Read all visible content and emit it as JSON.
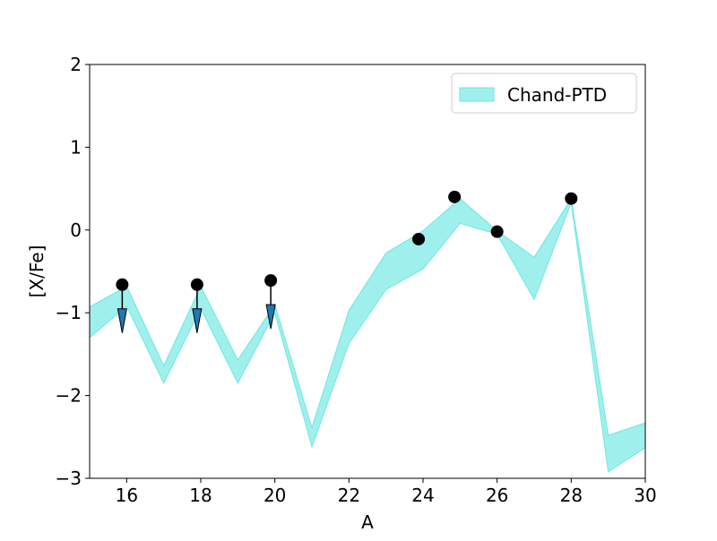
{
  "chart_data": {
    "type": "band_scatter",
    "xlabel": "A",
    "ylabel": "[X/Fe]",
    "xlim": [
      15,
      30
    ],
    "ylim": [
      -3,
      2
    ],
    "xticks": [
      16,
      18,
      20,
      22,
      24,
      26,
      28,
      30
    ],
    "yticks": [
      {
        "value": -3,
        "label": "−3"
      },
      {
        "value": -2,
        "label": "−2"
      },
      {
        "value": -1,
        "label": "−1"
      },
      0,
      1,
      2
    ],
    "legend": "upper right",
    "series": [
      {
        "type": "band",
        "name": "Chand-PTD",
        "color": "#9ff0ec",
        "edge_color": "#6ee6e0",
        "x": [
          15,
          16,
          17,
          18,
          19,
          20,
          21,
          22,
          23,
          24,
          25,
          26,
          27,
          28,
          29,
          30
        ],
        "upper": [
          -0.93,
          -0.68,
          -1.64,
          -0.68,
          -1.57,
          -0.9,
          -2.39,
          -0.97,
          -0.28,
          -0.01,
          0.38,
          -0.01,
          -0.33,
          0.38,
          -2.48,
          -2.33
        ],
        "lower": [
          -1.3,
          -0.92,
          -1.85,
          -0.95,
          -1.85,
          -1.0,
          -2.62,
          -1.37,
          -0.72,
          -0.47,
          0.08,
          -0.05,
          -0.84,
          0.33,
          -2.92,
          -2.63
        ]
      },
      {
        "type": "scatter",
        "color": "#000000",
        "arrow_color": "#1f77b4",
        "x": [
          15.88,
          17.9,
          19.89,
          23.88,
          24.85,
          26.0,
          28.0
        ],
        "values": [
          -0.66,
          -0.66,
          -0.61,
          -0.11,
          0.4,
          -0.02,
          0.38
        ],
        "upper_limits": [
          true,
          true,
          true,
          false,
          false,
          false,
          false
        ]
      }
    ]
  }
}
